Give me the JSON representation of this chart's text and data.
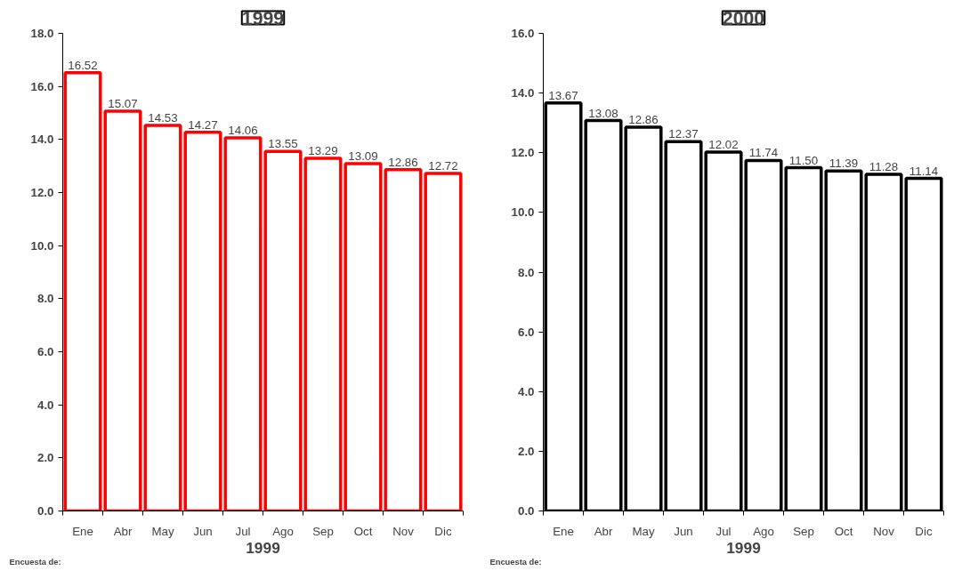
{
  "chart_data": [
    {
      "type": "bar",
      "title": "1999",
      "xlabel": "1999",
      "annotations": [
        "Encuesta de:"
      ],
      "categories": [
        "Ene",
        "Abr",
        "May",
        "Jun",
        "Jul",
        "Ago",
        "Sep",
        "Oct",
        "Nov",
        "Dic"
      ],
      "series": [
        {
          "color": "#ff0000",
          "values": [
            16.52,
            15.07,
            14.53,
            14.27,
            14.06,
            13.55,
            13.29,
            13.09,
            12.86,
            12.72
          ]
        }
      ],
      "value_labels": [
        "16.52",
        "15.07",
        "14.53",
        "14.27",
        "14.06",
        "13.55",
        "13.29",
        "13.09",
        "12.86",
        "12.72"
      ],
      "ylim": [
        0,
        18
      ],
      "yticks": [
        {
          "value": 0,
          "label": "0.0"
        },
        {
          "value": 2,
          "label": "2.0"
        },
        {
          "value": 4,
          "label": "4.0"
        },
        {
          "value": 6,
          "label": "6.0"
        },
        {
          "value": 8,
          "label": "8.0"
        },
        {
          "value": 10,
          "label": "10.0"
        },
        {
          "value": 12,
          "label": "12.0"
        },
        {
          "value": 14,
          "label": "14.0"
        },
        {
          "value": 16,
          "label": "16.0"
        },
        {
          "value": 18,
          "label": "18.0"
        }
      ],
      "grid": false
    },
    {
      "type": "bar",
      "title": "2000",
      "xlabel": "1999",
      "annotations": [
        "Encuesta de:"
      ],
      "categories": [
        "Ene",
        "Abr",
        "May",
        "Jun",
        "Jul",
        "Ago",
        "Sep",
        "Oct",
        "Nov",
        "Dic"
      ],
      "series": [
        {
          "color": "#000000",
          "values": [
            13.67,
            13.08,
            12.86,
            12.37,
            12.02,
            11.74,
            11.5,
            11.39,
            11.28,
            11.14
          ]
        }
      ],
      "value_labels": [
        "13.67",
        "13.08",
        "12.86",
        "12.37",
        "12.02",
        "11.74",
        "11.50",
        "11.39",
        "11.28",
        "11.14"
      ],
      "ylim": [
        0,
        16
      ],
      "yticks": [
        {
          "value": 0,
          "label": "0.0"
        },
        {
          "value": 2,
          "label": "2.0"
        },
        {
          "value": 4,
          "label": "4.0"
        },
        {
          "value": 6,
          "label": "6.0"
        },
        {
          "value": 8,
          "label": "8.0"
        },
        {
          "value": 10,
          "label": "10.0"
        },
        {
          "value": 12,
          "label": "12.0"
        },
        {
          "value": 14,
          "label": "14.0"
        },
        {
          "value": 16,
          "label": "16.0"
        }
      ],
      "grid": false
    }
  ]
}
